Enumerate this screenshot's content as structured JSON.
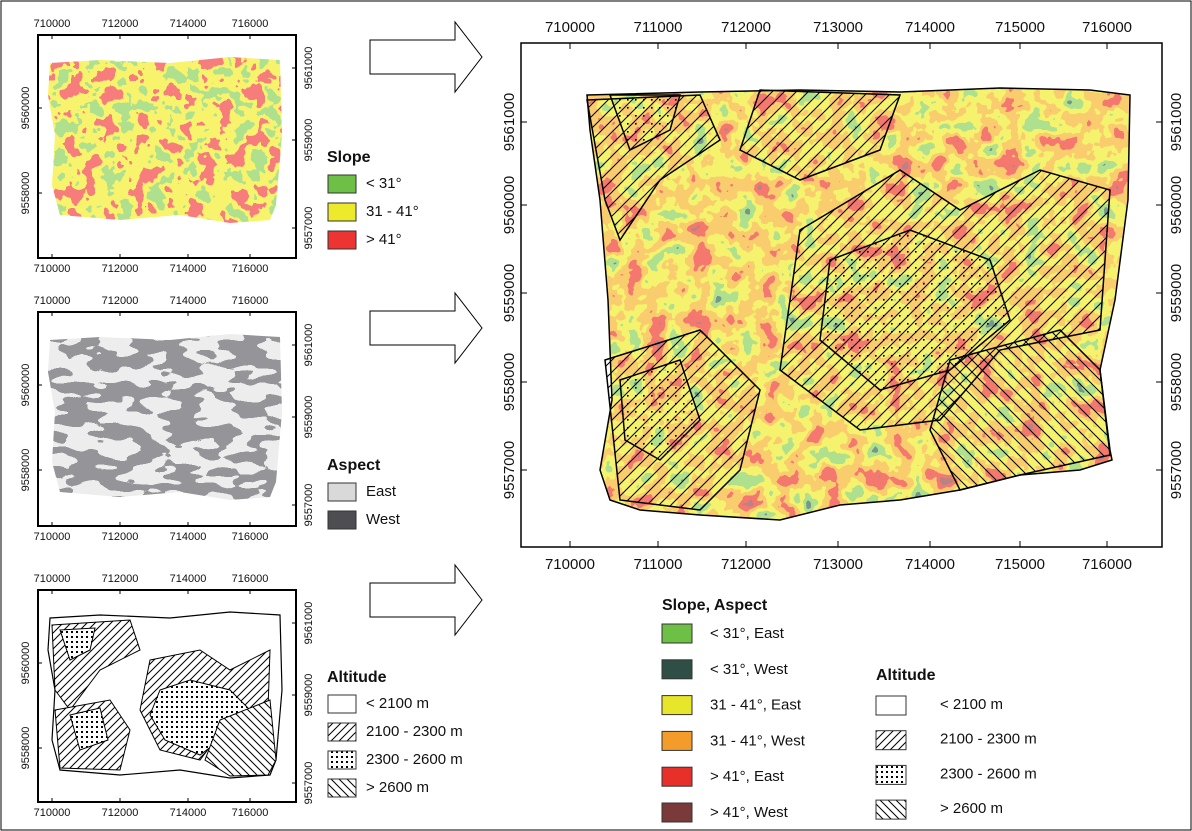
{
  "small_maps": [
    {
      "x_ticks_top": [
        710000,
        712000,
        714000,
        716000
      ],
      "x_ticks_bottom": [
        710000,
        712000,
        714000,
        716000
      ],
      "y_ticks_left": [
        9558000,
        9560000
      ],
      "y_ticks_right": [
        9557000,
        9559000,
        9561000
      ],
      "legend": {
        "title": "Slope",
        "items": [
          "< 31°",
          "31 - 41°",
          "> 41°"
        ]
      }
    },
    {
      "x_ticks_top": [
        710000,
        712000,
        714000,
        716000
      ],
      "x_ticks_bottom": [
        710000,
        712000,
        714000,
        716000
      ],
      "y_ticks_left": [
        9558000,
        9560000
      ],
      "y_ticks_right": [
        9557000,
        9559000,
        9561000
      ],
      "legend": {
        "title": "Aspect",
        "items": [
          "East",
          "West"
        ]
      }
    },
    {
      "x_ticks_top": [
        710000,
        712000,
        714000,
        716000
      ],
      "x_ticks_bottom": [
        710000,
        712000,
        714000,
        716000
      ],
      "y_ticks_left": [
        9558000,
        9560000
      ],
      "y_ticks_right": [
        9557000,
        9559000,
        9561000
      ],
      "legend": {
        "title": "Altitude",
        "items": [
          "< 2100 m",
          "2100 - 2300 m",
          "2300 - 2600 m",
          "> 2600 m"
        ]
      }
    }
  ],
  "main_map": {
    "x_ticks_top": [
      710000,
      711000,
      712000,
      713000,
      714000,
      715000,
      716000
    ],
    "x_ticks_bottom": [
      710000,
      711000,
      712000,
      713000,
      714000,
      715000,
      716000
    ],
    "y_ticks_left": [
      9557000,
      9558000,
      9559000,
      9560000,
      9561000
    ],
    "y_ticks_right": [
      9557000,
      9558000,
      9559000,
      9560000,
      9561000
    ]
  },
  "main_legend": {
    "slope_aspect": {
      "title": "Slope, Aspect",
      "items": [
        "< 31°, East",
        "< 31°, West",
        "31 - 41°, East",
        "31 - 41°, West",
        "> 41°, East",
        "> 41°, West"
      ]
    },
    "altitude": {
      "title": "Altitude",
      "items": [
        "< 2100 m",
        "2100 - 2300 m",
        "2300 - 2600 m",
        "> 2600 m"
      ]
    }
  }
}
